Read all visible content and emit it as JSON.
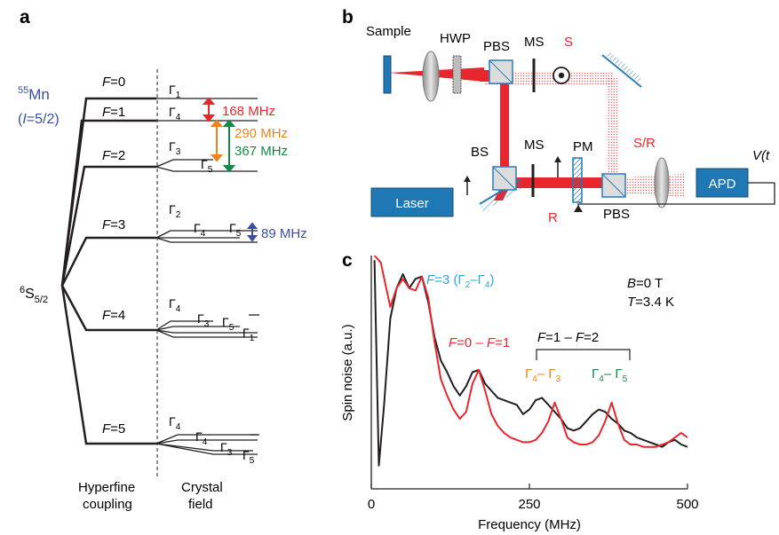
{
  "figure": {
    "panels": {
      "a": "a",
      "b": "b",
      "c": "c"
    },
    "colors": {
      "red": "#e8262e",
      "orange": "#f0821e",
      "green": "#138a45",
      "blue": "#3a4fa0",
      "cyan": "#27aae1",
      "box_blue": "#1f78b4"
    }
  },
  "panel_a": {
    "isotope_mass": "55",
    "isotope_element": "Mn",
    "spin_open": "(",
    "spin_var": "I",
    "spin_value": "=5/2)",
    "ground_state_main": "S",
    "ground_state_pre": "6",
    "ground_state_sub": "5/2",
    "f_var": "F",
    "levels": [
      {
        "f": "=0",
        "gammas": [
          {
            "g": "Γ",
            "s": "1"
          }
        ]
      },
      {
        "f": "=1",
        "gammas": [
          {
            "g": "Γ",
            "s": "4"
          }
        ]
      },
      {
        "f": "=2",
        "gammas": [
          {
            "g": "Γ",
            "s": "3"
          },
          {
            "g": "Γ",
            "s": "5"
          }
        ]
      },
      {
        "f": "=3",
        "gammas": [
          {
            "g": "Γ",
            "s": "2"
          },
          {
            "g": "Γ",
            "s": "4"
          },
          {
            "g": "Γ",
            "s": "5"
          }
        ]
      },
      {
        "f": "=4",
        "gammas": [
          {
            "g": "Γ",
            "s": "4"
          },
          {
            "g": "Γ",
            "s": "3"
          },
          {
            "g": "Γ",
            "s": "5"
          },
          {
            "g": "Γ",
            "s": "1"
          }
        ]
      },
      {
        "f": "=5",
        "gammas": [
          {
            "g": "Γ",
            "s": "4"
          },
          {
            "g": "Γ",
            "s": "4"
          },
          {
            "g": "Γ",
            "s": "3"
          },
          {
            "g": "Γ",
            "s": "5"
          }
        ]
      }
    ],
    "splittings": [
      {
        "label": "168 MHz",
        "color": "#e8262e"
      },
      {
        "label": "290 MHz",
        "color": "#f0821e"
      },
      {
        "label": "367 MHz",
        "color": "#138a45"
      },
      {
        "label": "89 MHz",
        "color": "#3a4fa0"
      }
    ],
    "bottom_left_1": "Hyperfine",
    "bottom_left_2": "coupling",
    "bottom_right_1": "Crystal",
    "bottom_right_2": "field"
  },
  "panel_b": {
    "sample": "Sample",
    "hwp": "HWP",
    "pbs_top": "PBS",
    "ms_top": "MS",
    "s_label": "S",
    "bs": "BS",
    "ms_mid": "MS",
    "pm": "PM",
    "sr_label": "S/R",
    "apd": "APD",
    "v_label": "V(t",
    "laser": "Laser",
    "pbs_bottom": "PBS",
    "r_label": "R"
  },
  "chart_data": {
    "type": "line",
    "xlabel": "Frequency (MHz)",
    "ylabel": "Spin noise (a.u.)",
    "xlim": [
      0,
      500
    ],
    "xticks": [
      "0",
      "250",
      "500"
    ],
    "params": {
      "b_var": "B",
      "b_val": "=0 T",
      "t_var": "T",
      "t_val": "=3.4 K"
    },
    "annotations": {
      "f3_var": "F",
      "f3_rest": "=3 (Γ",
      "f3_s1": "2",
      "f3_mid": "–Γ",
      "f3_s2": "4",
      "f3_close": ")",
      "f01_a": "F",
      "f01_b": "=0 – ",
      "f01_c": "F",
      "f01_d": "=1",
      "f12_a": "F",
      "f12_b": "=1 – ",
      "f12_c": "F",
      "f12_d": "=2",
      "g43_a": "Γ",
      "g43_s1": "4",
      "g43_b": "– Γ",
      "g43_s2": "3",
      "g45_a": "Γ",
      "g45_s1": "4",
      "g45_b": "– Γ",
      "g45_s2": "5"
    },
    "series": [
      {
        "color": "#231f20",
        "x": [
          5,
          12,
          20,
          30,
          40,
          50,
          60,
          70,
          80,
          90,
          100,
          110,
          120,
          130,
          140,
          150,
          160,
          170,
          180,
          190,
          200,
          210,
          220,
          230,
          240,
          250,
          260,
          270,
          280,
          290,
          300,
          310,
          320,
          330,
          340,
          350,
          360,
          370,
          380,
          390,
          400,
          410,
          420,
          430,
          440,
          450,
          460,
          470,
          480,
          490,
          500
        ],
        "y": [
          0.98,
          0.1,
          0.35,
          0.73,
          0.86,
          0.92,
          0.86,
          0.9,
          0.91,
          0.8,
          0.65,
          0.55,
          0.5,
          0.44,
          0.4,
          0.44,
          0.5,
          0.51,
          0.45,
          0.42,
          0.39,
          0.38,
          0.37,
          0.36,
          0.32,
          0.34,
          0.38,
          0.39,
          0.36,
          0.33,
          0.3,
          0.26,
          0.25,
          0.26,
          0.29,
          0.32,
          0.34,
          0.33,
          0.3,
          0.28,
          0.25,
          0.24,
          0.22,
          0.21,
          0.2,
          0.19,
          0.18,
          0.2,
          0.21,
          0.19,
          0.18
        ]
      },
      {
        "color": "#e8262e",
        "x": [
          5,
          15,
          30,
          40,
          50,
          60,
          70,
          80,
          90,
          100,
          110,
          120,
          130,
          140,
          150,
          160,
          170,
          180,
          190,
          200,
          210,
          220,
          230,
          240,
          250,
          260,
          270,
          280,
          290,
          300,
          310,
          320,
          330,
          340,
          350,
          360,
          370,
          380,
          390,
          400,
          410,
          420,
          430,
          440,
          450,
          460,
          470,
          480,
          490,
          500
        ],
        "y": [
          1.0,
          0.97,
          0.78,
          0.86,
          0.9,
          0.86,
          0.85,
          0.91,
          0.82,
          0.63,
          0.47,
          0.4,
          0.34,
          0.3,
          0.33,
          0.45,
          0.51,
          0.42,
          0.32,
          0.27,
          0.24,
          0.22,
          0.21,
          0.2,
          0.2,
          0.21,
          0.24,
          0.29,
          0.37,
          0.3,
          0.22,
          0.2,
          0.19,
          0.19,
          0.2,
          0.23,
          0.29,
          0.37,
          0.28,
          0.21,
          0.19,
          0.19,
          0.18,
          0.18,
          0.18,
          0.19,
          0.2,
          0.22,
          0.24,
          0.22
        ]
      }
    ]
  }
}
